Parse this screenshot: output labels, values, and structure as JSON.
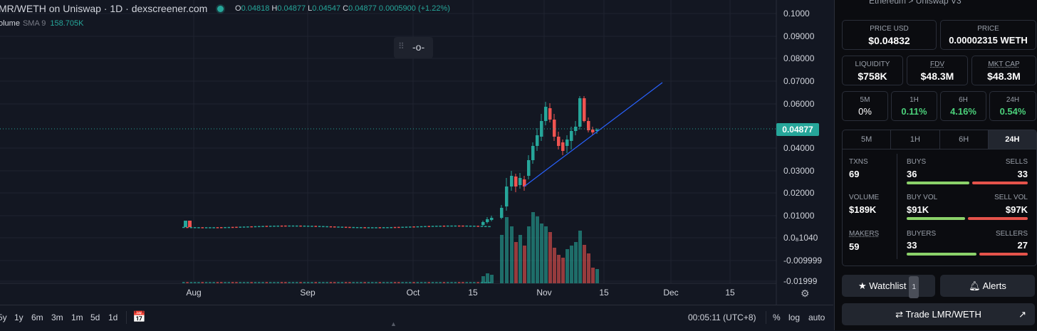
{
  "header": {
    "title": "MR/WETH on Uniswap · 1D · dexscreener.com",
    "ohlc": [
      {
        "k": "O",
        "v": "0.04818"
      },
      {
        "k": "H",
        "v": "0.04877"
      },
      {
        "k": "L",
        "v": "0.04547"
      },
      {
        "k": "C",
        "v": "0.04877"
      }
    ],
    "change": "0.0005900 (+1.22%)"
  },
  "volume": {
    "label": "olume",
    "sma": "SMA 9",
    "value": "158.705K"
  },
  "price_axis": [
    "0.1000",
    "0.09000",
    "0.08000",
    "0.07000",
    "0.06000",
    "0.04000",
    "0.03000",
    "0.02000",
    "0.01000",
    "0.0₈1040",
    "-0.009999",
    "-0.01999"
  ],
  "current_price": "0.04877",
  "time_axis": [
    "Aug",
    "Sep",
    "Oct",
    "15",
    "Nov",
    "15",
    "Dec",
    "15"
  ],
  "timeframes": [
    "5y",
    "1y",
    "6m",
    "3m",
    "1m",
    "5d",
    "1d"
  ],
  "clock": "00:05:11 (UTC+8)",
  "options": [
    "%",
    "log",
    "auto"
  ],
  "colors": {
    "up": "#26a69a",
    "down": "#ef5350",
    "trend": "#2962ff",
    "accent_green": "#4bd07a"
  },
  "panel": {
    "breadcrumb": "Ethereum  >  Uniswap  V3",
    "price_usd": {
      "label": "PRICE USD",
      "value": "$0.04832"
    },
    "price_native": {
      "label": "PRICE",
      "value": "0.00002315 WETH"
    },
    "liquidity": {
      "label": "LIQUIDITY",
      "value": "$758K"
    },
    "fdv": {
      "label": "FDV",
      "value": "$48.3M"
    },
    "mkt_cap": {
      "label": "MKT CAP",
      "value": "$48.3M"
    },
    "changes": [
      {
        "label": "5M",
        "value": "0%"
      },
      {
        "label": "1H",
        "value": "0.11%"
      },
      {
        "label": "6H",
        "value": "4.16%"
      },
      {
        "label": "24H",
        "value": "0.54%"
      }
    ],
    "tabs": [
      "5M",
      "1H",
      "6H",
      "24H"
    ],
    "stats": {
      "txns": {
        "label": "TXNS",
        "value": "69"
      },
      "buys": {
        "label": "BUYS",
        "value": "36"
      },
      "sells": {
        "label": "SELLS",
        "value": "33"
      },
      "volume": {
        "label": "VOLUME",
        "value": "$189K"
      },
      "buy_vol": {
        "label": "BUY VOL",
        "value": "$91K"
      },
      "sell_vol": {
        "label": "SELL VOL",
        "value": "$97K"
      },
      "makers": {
        "label": "MAKERS",
        "value": "59"
      },
      "buyers": {
        "label": "BUYERS",
        "value": "33"
      },
      "sellers": {
        "label": "SELLERS",
        "value": "27"
      }
    },
    "buttons": {
      "watchlist": "Watchlist",
      "watchlist_count": "1",
      "alerts": "Alerts",
      "trade": "Trade LMR/WETH"
    }
  }
}
